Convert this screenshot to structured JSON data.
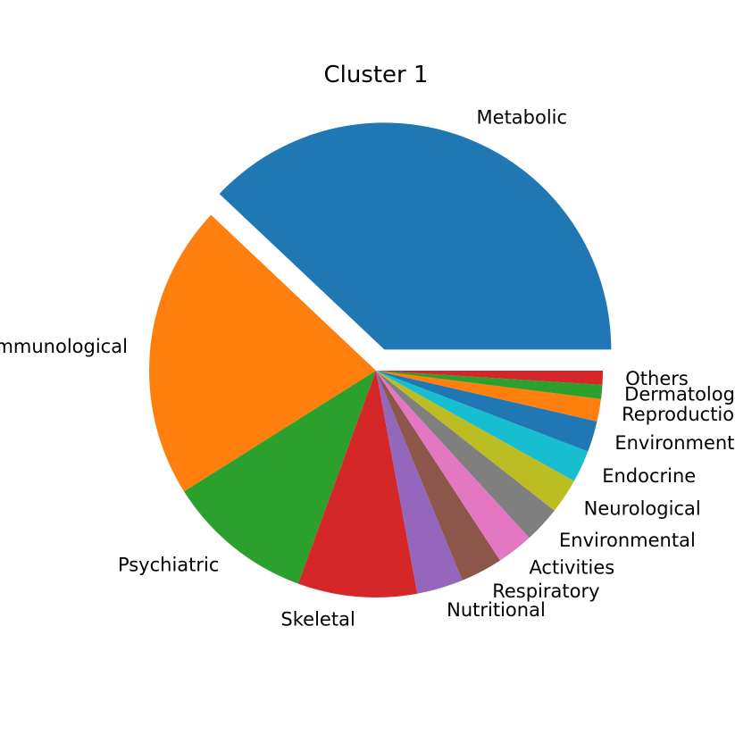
{
  "chart_data": {
    "type": "pie",
    "title": "Cluster 1",
    "unit": "percent",
    "slices": [
      {
        "label": "Metabolic",
        "value": 38.0,
        "color": "#1f77b4",
        "exploded": true
      },
      {
        "label": "Immunological",
        "value": 21.0,
        "color": "#ff7f0e"
      },
      {
        "label": "Psychiatric",
        "value": 10.5,
        "color": "#2ca02c"
      },
      {
        "label": "Skeletal",
        "value": 8.5,
        "color": "#d62728"
      },
      {
        "label": "Nutritional",
        "value": 3.3,
        "color": "#9467bd"
      },
      {
        "label": "Respiratory",
        "value": 3.0,
        "color": "#8c564b"
      },
      {
        "label": "Activities",
        "value": 2.6,
        "color": "#e377c2"
      },
      {
        "label": "Environmental",
        "value": 2.6,
        "color": "#7f7f7f"
      },
      {
        "label": "Neurological",
        "value": 2.5,
        "color": "#bcbd22"
      },
      {
        "label": "Endocrine",
        "value": 2.3,
        "color": "#17becf"
      },
      {
        "label": "Environmental",
        "value": 2.2,
        "color": "#1f77b4"
      },
      {
        "label": "Reproduction",
        "value": 1.6,
        "color": "#ff7f0e"
      },
      {
        "label": "Dermatology",
        "value": 1.0,
        "color": "#2ca02c"
      },
      {
        "label": "Others",
        "value": 1.0,
        "color": "#d62728"
      }
    ]
  }
}
